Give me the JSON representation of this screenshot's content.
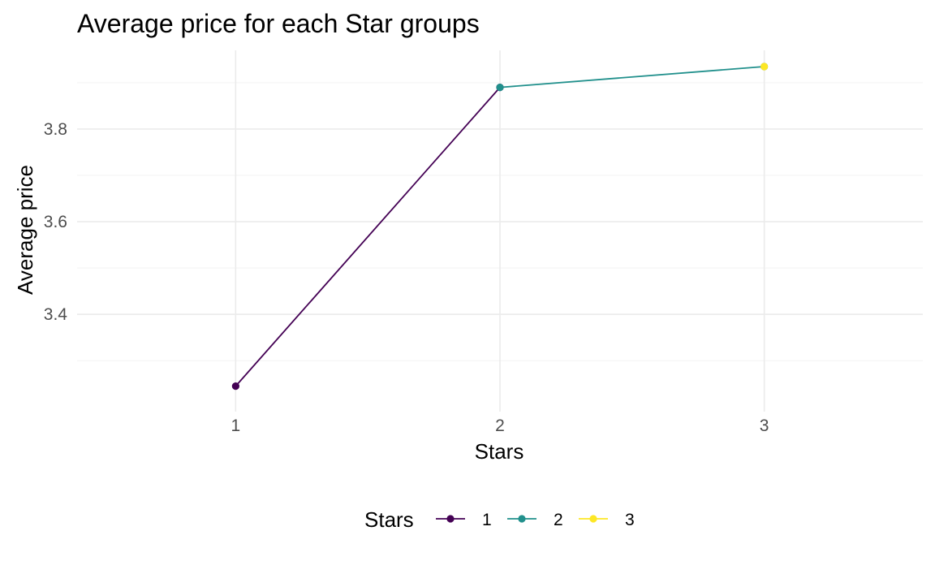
{
  "chart_data": {
    "type": "line",
    "title": "Average price for each Star groups",
    "xlabel": "Stars",
    "ylabel": "Average price",
    "x": [
      1,
      2,
      3
    ],
    "x_ticks": [
      "1",
      "2",
      "3"
    ],
    "y_ticks": [
      3.4,
      3.6,
      3.8
    ],
    "y_tick_labels": [
      "3.4",
      "3.6",
      "3.8"
    ],
    "xlim": [
      0.4,
      3.6
    ],
    "ylim": [
      3.19,
      3.97
    ],
    "grid": true,
    "legend": {
      "title": "Stars",
      "position": "bottom",
      "entries": [
        "1",
        "2",
        "3"
      ]
    },
    "series": [
      {
        "name": "1",
        "color": "#440154",
        "x": [
          1,
          2
        ],
        "y": [
          3.245,
          3.89
        ]
      },
      {
        "name": "2",
        "color": "#21908C",
        "x": [
          2,
          3
        ],
        "y": [
          3.89,
          3.935
        ]
      },
      {
        "name": "3",
        "color": "#FDE725",
        "x": [
          3
        ],
        "y": [
          3.935
        ]
      }
    ]
  }
}
